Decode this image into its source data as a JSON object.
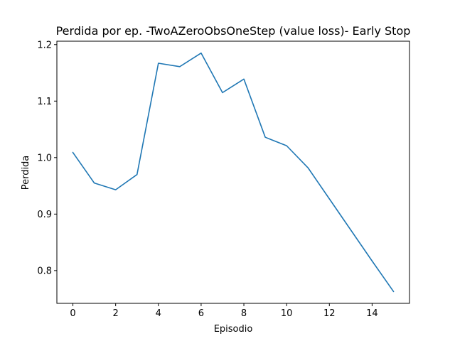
{
  "chart_data": {
    "type": "line",
    "title": "Perdida por ep. -TwoAZeroObsOneStep (value loss)- Early Stop",
    "xlabel": "Episodio",
    "ylabel": "Perdida",
    "x": [
      0,
      1,
      2,
      3,
      4,
      5,
      6,
      7,
      8,
      9,
      10,
      11,
      12,
      13,
      14,
      15
    ],
    "series": [
      {
        "values": [
          1.009,
          0.955,
          0.943,
          0.97,
          1.167,
          1.161,
          1.185,
          1.115,
          1.139,
          1.036,
          1.021,
          0.982,
          0.927,
          0.872,
          0.817,
          0.763
        ],
        "color": "#1f77b4"
      }
    ],
    "xlim": [
      -0.75,
      15.75
    ],
    "ylim": [
      0.742,
      1.206
    ],
    "xticks": [
      0,
      2,
      4,
      6,
      8,
      10,
      12,
      14
    ],
    "xtick_labels": [
      "0",
      "2",
      "4",
      "6",
      "8",
      "10",
      "12",
      "14"
    ],
    "yticks": [
      0.8,
      0.9,
      1.0,
      1.1,
      1.2
    ],
    "ytick_labels": [
      "0.8",
      "0.9",
      "1.0",
      "1.1",
      "1.2"
    ],
    "grid": false,
    "legend": "none"
  }
}
